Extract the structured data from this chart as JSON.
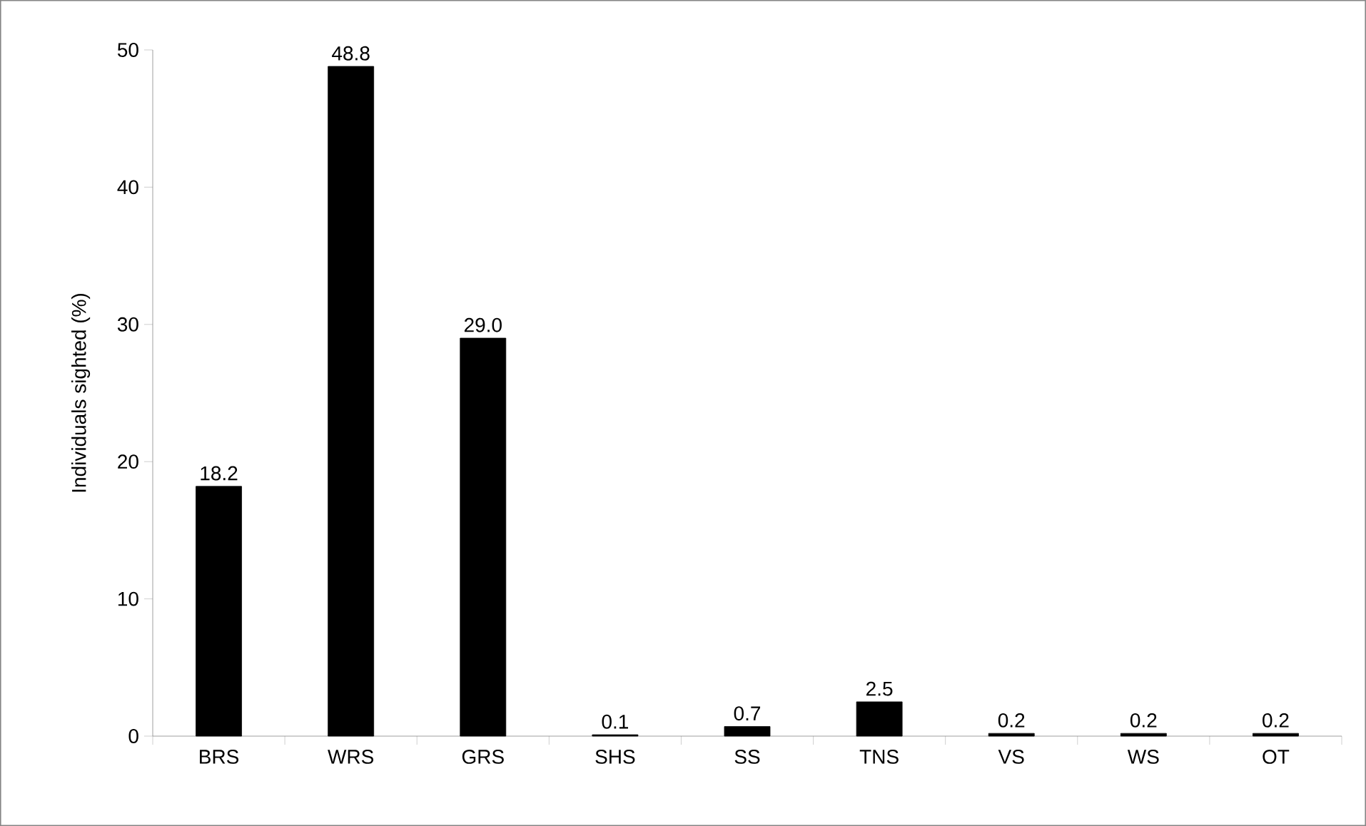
{
  "chart_data": {
    "type": "bar",
    "ylabel": "Individuals sighted (%)",
    "categories": [
      "BRS",
      "WRS",
      "GRS",
      "SHS",
      "SS",
      "TNS",
      "VS",
      "WS",
      "OT"
    ],
    "values": [
      18.2,
      48.8,
      29.0,
      0.1,
      0.7,
      2.5,
      0.2,
      0.2,
      0.2
    ],
    "value_labels": [
      "18.2",
      "48.8",
      "29.0",
      "0.1",
      "0.7",
      "2.5",
      "0.2",
      "0.2",
      "0.2"
    ],
    "color": "#000000",
    "ylim": [
      0,
      50
    ],
    "yticks": [
      0,
      10,
      20,
      30,
      40,
      50
    ],
    "grid": false
  }
}
